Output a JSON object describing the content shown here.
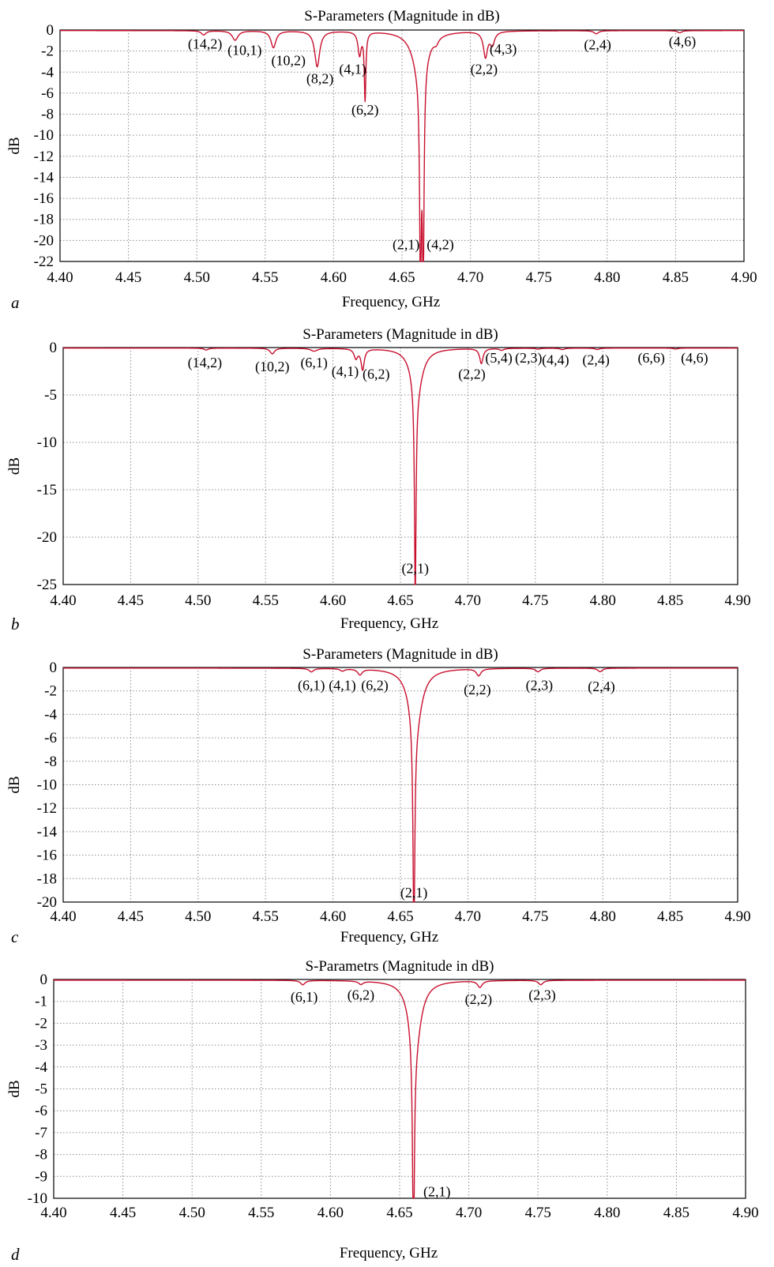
{
  "figure": {
    "panels": [
      "a",
      "b",
      "c",
      "d"
    ]
  },
  "colors": {
    "trace": "#c8102e",
    "grid": "#8c8c8c",
    "frame": "#000000",
    "background": "#ffffff"
  },
  "chart_data": [
    {
      "panel_label": "a",
      "type": "line",
      "title": "S-Parameters (Magnitude in dB)",
      "xlabel": "Frequency, GHz",
      "ylabel": "dB",
      "xlim": [
        4.4,
        4.9
      ],
      "ylim": [
        -22,
        0
      ],
      "xticks": [
        "4.40",
        "4.45",
        "4.50",
        "4.55",
        "4.60",
        "4.65",
        "4.70",
        "4.75",
        "4.80",
        "4.85",
        "4.90"
      ],
      "yticks": [
        "0",
        "-2",
        "-4",
        "-6",
        "-8",
        "-10",
        "-12",
        "-14",
        "-16",
        "-18",
        "-20",
        "-22"
      ],
      "grid": true,
      "series": [
        {
          "baseline": -0.05,
          "dips": [
            {
              "f": 4.505,
              "depth": -0.4,
              "w": 0.002
            },
            {
              "f": 4.528,
              "depth": -0.9,
              "w": 0.0025
            },
            {
              "f": 4.556,
              "depth": -1.6,
              "w": 0.0022
            },
            {
              "f": 4.588,
              "depth": -3.4,
              "w": 0.0022
            },
            {
              "f": 4.619,
              "depth": -2.2,
              "w": 0.0014
            },
            {
              "f": 4.623,
              "depth": -6.4,
              "w": 0.0007
            },
            {
              "f": 4.6635,
              "depth": -20.2,
              "w": 0.0007
            },
            {
              "f": 4.6655,
              "depth": -20.2,
              "w": 0.0007
            },
            {
              "f": 4.663,
              "depth": -4.0,
              "w": 0.006
            },
            {
              "f": 4.675,
              "depth": -0.5,
              "w": 0.002
            },
            {
              "f": 4.711,
              "depth": -2.4,
              "w": 0.0018
            },
            {
              "f": 4.716,
              "depth": -1.2,
              "w": 0.002
            },
            {
              "f": 4.792,
              "depth": -0.3,
              "w": 0.002
            },
            {
              "f": 4.853,
              "depth": -0.2,
              "w": 0.002
            }
          ]
        }
      ],
      "annotations": [
        {
          "text": "(14,2)",
          "f": 4.506,
          "y": -1.3
        },
        {
          "text": "(10,1)",
          "f": 4.535,
          "y": -1.9
        },
        {
          "text": "(10,2)",
          "f": 4.567,
          "y": -2.9
        },
        {
          "text": "(8,2)",
          "f": 4.59,
          "y": -4.6
        },
        {
          "text": "(4,1)",
          "f": 4.614,
          "y": -3.7
        },
        {
          "text": "(6,2)",
          "f": 4.623,
          "y": -7.6
        },
        {
          "text": "(4,3)",
          "f": 4.724,
          "y": -1.8
        },
        {
          "text": "(2,2)",
          "f": 4.71,
          "y": -3.7
        },
        {
          "text": "(2,4)",
          "f": 4.793,
          "y": -1.4
        },
        {
          "text": "(4,6)",
          "f": 4.855,
          "y": -1.1
        },
        {
          "text": "(2,1)",
          "f": 4.653,
          "y": -20.4
        },
        {
          "text": "(4,2)",
          "f": 4.678,
          "y": -20.4
        }
      ]
    },
    {
      "panel_label": "b",
      "type": "line",
      "title": "S-Parameters (Magnitude in dB)",
      "xlabel": "Frequency, GHz",
      "ylabel": "dB",
      "xlim": [
        4.4,
        4.9
      ],
      "ylim": [
        -25,
        0
      ],
      "xticks": [
        "4.40",
        "4.45",
        "4.50",
        "4.55",
        "4.60",
        "4.65",
        "4.70",
        "4.75",
        "4.80",
        "4.85",
        "4.90"
      ],
      "yticks": [
        "0",
        "-5",
        "-10",
        "-15",
        "-20",
        "-25"
      ],
      "grid": true,
      "series": [
        {
          "baseline": -0.05,
          "dips": [
            {
              "f": 4.506,
              "depth": -0.2,
              "w": 0.002
            },
            {
              "f": 4.555,
              "depth": -0.6,
              "w": 0.002
            },
            {
              "f": 4.586,
              "depth": -0.3,
              "w": 0.003
            },
            {
              "f": 4.617,
              "depth": -1.0,
              "w": 0.0016
            },
            {
              "f": 4.622,
              "depth": -2.2,
              "w": 0.0014
            },
            {
              "f": 4.661,
              "depth": -22.0,
              "w": 0.0007
            },
            {
              "f": 4.662,
              "depth": -4.5,
              "w": 0.005
            },
            {
              "f": 4.71,
              "depth": -1.6,
              "w": 0.0015
            },
            {
              "f": 4.725,
              "depth": -0.2,
              "w": 0.002
            },
            {
              "f": 4.752,
              "depth": -0.1,
              "w": 0.002
            },
            {
              "f": 4.77,
              "depth": -0.15,
              "w": 0.002
            },
            {
              "f": 4.796,
              "depth": -0.15,
              "w": 0.002
            },
            {
              "f": 4.854,
              "depth": -0.1,
              "w": 0.002
            }
          ]
        }
      ],
      "annotations": [
        {
          "text": "(14,2)",
          "f": 4.505,
          "y": -1.6
        },
        {
          "text": "(10,2)",
          "f": 4.555,
          "y": -2.0
        },
        {
          "text": "(6,1)",
          "f": 4.586,
          "y": -1.6
        },
        {
          "text": "(4,1)",
          "f": 4.609,
          "y": -2.5
        },
        {
          "text": "(6,2)",
          "f": 4.632,
          "y": -2.8
        },
        {
          "text": "(2,2)",
          "f": 4.703,
          "y": -2.8
        },
        {
          "text": "(5,4)",
          "f": 4.723,
          "y": -1.1
        },
        {
          "text": "(2,3)",
          "f": 4.745,
          "y": -1.1
        },
        {
          "text": "(4,4)",
          "f": 4.765,
          "y": -1.3
        },
        {
          "text": "(2,4)",
          "f": 4.795,
          "y": -1.3
        },
        {
          "text": "(6,6)",
          "f": 4.836,
          "y": -1.1
        },
        {
          "text": "(4,6)",
          "f": 4.868,
          "y": -1.1
        },
        {
          "text": "(2,1)",
          "f": 4.661,
          "y": -23.3
        }
      ]
    },
    {
      "panel_label": "c",
      "type": "line",
      "title": "S-Parameters (Magnitude in dB)",
      "xlabel": "Frequency, GHz",
      "ylabel": "dB",
      "xlim": [
        4.4,
        4.9
      ],
      "ylim": [
        -20,
        0
      ],
      "xticks": [
        "4.40",
        "4.45",
        "4.50",
        "4.55",
        "4.60",
        "4.65",
        "4.70",
        "4.75",
        "4.80",
        "4.85",
        "4.90"
      ],
      "yticks": [
        "0",
        "-2",
        "-4",
        "-6",
        "-8",
        "-10",
        "-12",
        "-14",
        "-16",
        "-18",
        "-20"
      ],
      "grid": true,
      "series": [
        {
          "baseline": -0.05,
          "dips": [
            {
              "f": 4.584,
              "depth": -0.3,
              "w": 0.002
            },
            {
              "f": 4.607,
              "depth": -0.2,
              "w": 0.002
            },
            {
              "f": 4.62,
              "depth": -0.5,
              "w": 0.002
            },
            {
              "f": 4.66,
              "depth": -18.2,
              "w": 0.0008
            },
            {
              "f": 4.661,
              "depth": -5.0,
              "w": 0.0055
            },
            {
              "f": 4.708,
              "depth": -0.6,
              "w": 0.002
            },
            {
              "f": 4.752,
              "depth": -0.3,
              "w": 0.002
            },
            {
              "f": 4.798,
              "depth": -0.3,
              "w": 0.002
            }
          ]
        }
      ],
      "annotations": [
        {
          "text": "(6,1)",
          "f": 4.584,
          "y": -1.5
        },
        {
          "text": "(4,1)",
          "f": 4.607,
          "y": -1.5
        },
        {
          "text": "(6,2)",
          "f": 4.631,
          "y": -1.5
        },
        {
          "text": "(2,2)",
          "f": 4.707,
          "y": -1.9
        },
        {
          "text": "(2,3)",
          "f": 4.753,
          "y": -1.5
        },
        {
          "text": "(2,4)",
          "f": 4.799,
          "y": -1.6
        },
        {
          "text": "(2,1)",
          "f": 4.66,
          "y": -19.2
        }
      ]
    },
    {
      "panel_label": "d",
      "type": "line",
      "title": "S-Parametrs (Magnitude in dB)",
      "xlabel": "Frequency, GHz",
      "ylabel": "dB",
      "xlim": [
        4.4,
        4.9
      ],
      "ylim": [
        -10,
        0
      ],
      "xticks": [
        "4.40",
        "4.45",
        "4.50",
        "4.55",
        "4.60",
        "4.65",
        "4.70",
        "4.75",
        "4.80",
        "4.85",
        "4.90"
      ],
      "yticks": [
        "0",
        "-1",
        "-2",
        "-3",
        "-4",
        "-5",
        "-6",
        "-7",
        "-8",
        "-9",
        "-10"
      ],
      "grid": true,
      "series": [
        {
          "baseline": -0.03,
          "dips": [
            {
              "f": 4.58,
              "depth": -0.2,
              "w": 0.002
            },
            {
              "f": 4.622,
              "depth": -0.15,
              "w": 0.002
            },
            {
              "f": 4.66,
              "depth": -9.6,
              "w": 0.0008
            },
            {
              "f": 4.661,
              "depth": -3.0,
              "w": 0.005
            },
            {
              "f": 4.708,
              "depth": -0.3,
              "w": 0.002
            },
            {
              "f": 4.752,
              "depth": -0.2,
              "w": 0.002
            }
          ]
        }
      ],
      "annotations": [
        {
          "text": "(6,1)",
          "f": 4.581,
          "y": -0.8
        },
        {
          "text": "(6,2)",
          "f": 4.622,
          "y": -0.7
        },
        {
          "text": "(2,2)",
          "f": 4.707,
          "y": -0.9
        },
        {
          "text": "(2,3)",
          "f": 4.753,
          "y": -0.7
        },
        {
          "text": "(2,1)",
          "f": 4.677,
          "y": -9.7
        }
      ]
    }
  ]
}
